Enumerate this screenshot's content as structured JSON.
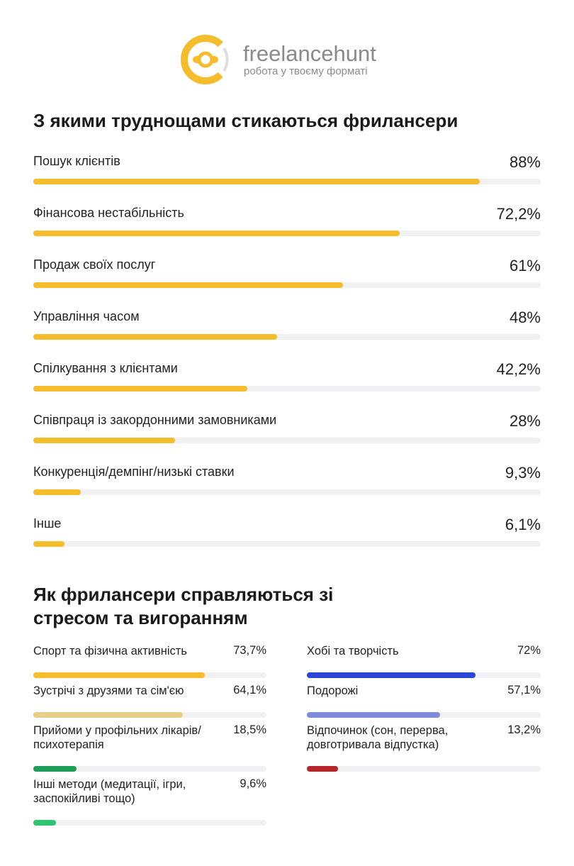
{
  "header": {
    "brand": "freelancehunt",
    "tagline": "робота у твоєму форматі"
  },
  "chart_data": [
    {
      "type": "bar",
      "title": "З якими труднощами стикаються фрилансери",
      "categories": [
        "Пошук клієнтів",
        "Фінансова нестабільність",
        "Продаж своїх послуг",
        "Управління часом",
        "Спілкування з клієнтами",
        "Співпраця із закордонними замовниками",
        "Конкуренція/демпінг/низькі ставки",
        "Інше"
      ],
      "values": [
        88,
        72.2,
        61,
        48,
        42.2,
        28,
        9.3,
        6.1
      ],
      "value_labels": [
        "88%",
        "72,2%",
        "61%",
        "48%",
        "42,2%",
        "28%",
        "9,3%",
        "6,1%"
      ],
      "color": "#f5bd2c",
      "xlim": [
        0,
        100
      ]
    },
    {
      "type": "bar",
      "title": "Як фрилансери справляються зі стресом та вигоранням",
      "categories": [
        "Спорт та фізична активність",
        "Хобі та творчість",
        "Зустрічі з друзями та сім'єю",
        "Подорожі",
        "Прийоми у профільних лікарів/психотерапія",
        "Відпочинок (сон, перерва, довготривала відпустка)",
        "Інші методи (медитації, ігри, заспокійливі тощо)"
      ],
      "values": [
        73.7,
        72,
        64.1,
        57.1,
        18.5,
        13.2,
        9.6
      ],
      "value_labels": [
        "73,7%",
        "72%",
        "64,1%",
        "57,1%",
        "18,5%",
        "13,2%",
        "9,6%"
      ],
      "colors": [
        "#f5bd2c",
        "#2b45d6",
        "#e9cf85",
        "#7f8cdb",
        "#1e9e58",
        "#b5262b",
        "#2fc46f"
      ],
      "xlim": [
        0,
        100
      ]
    }
  ]
}
